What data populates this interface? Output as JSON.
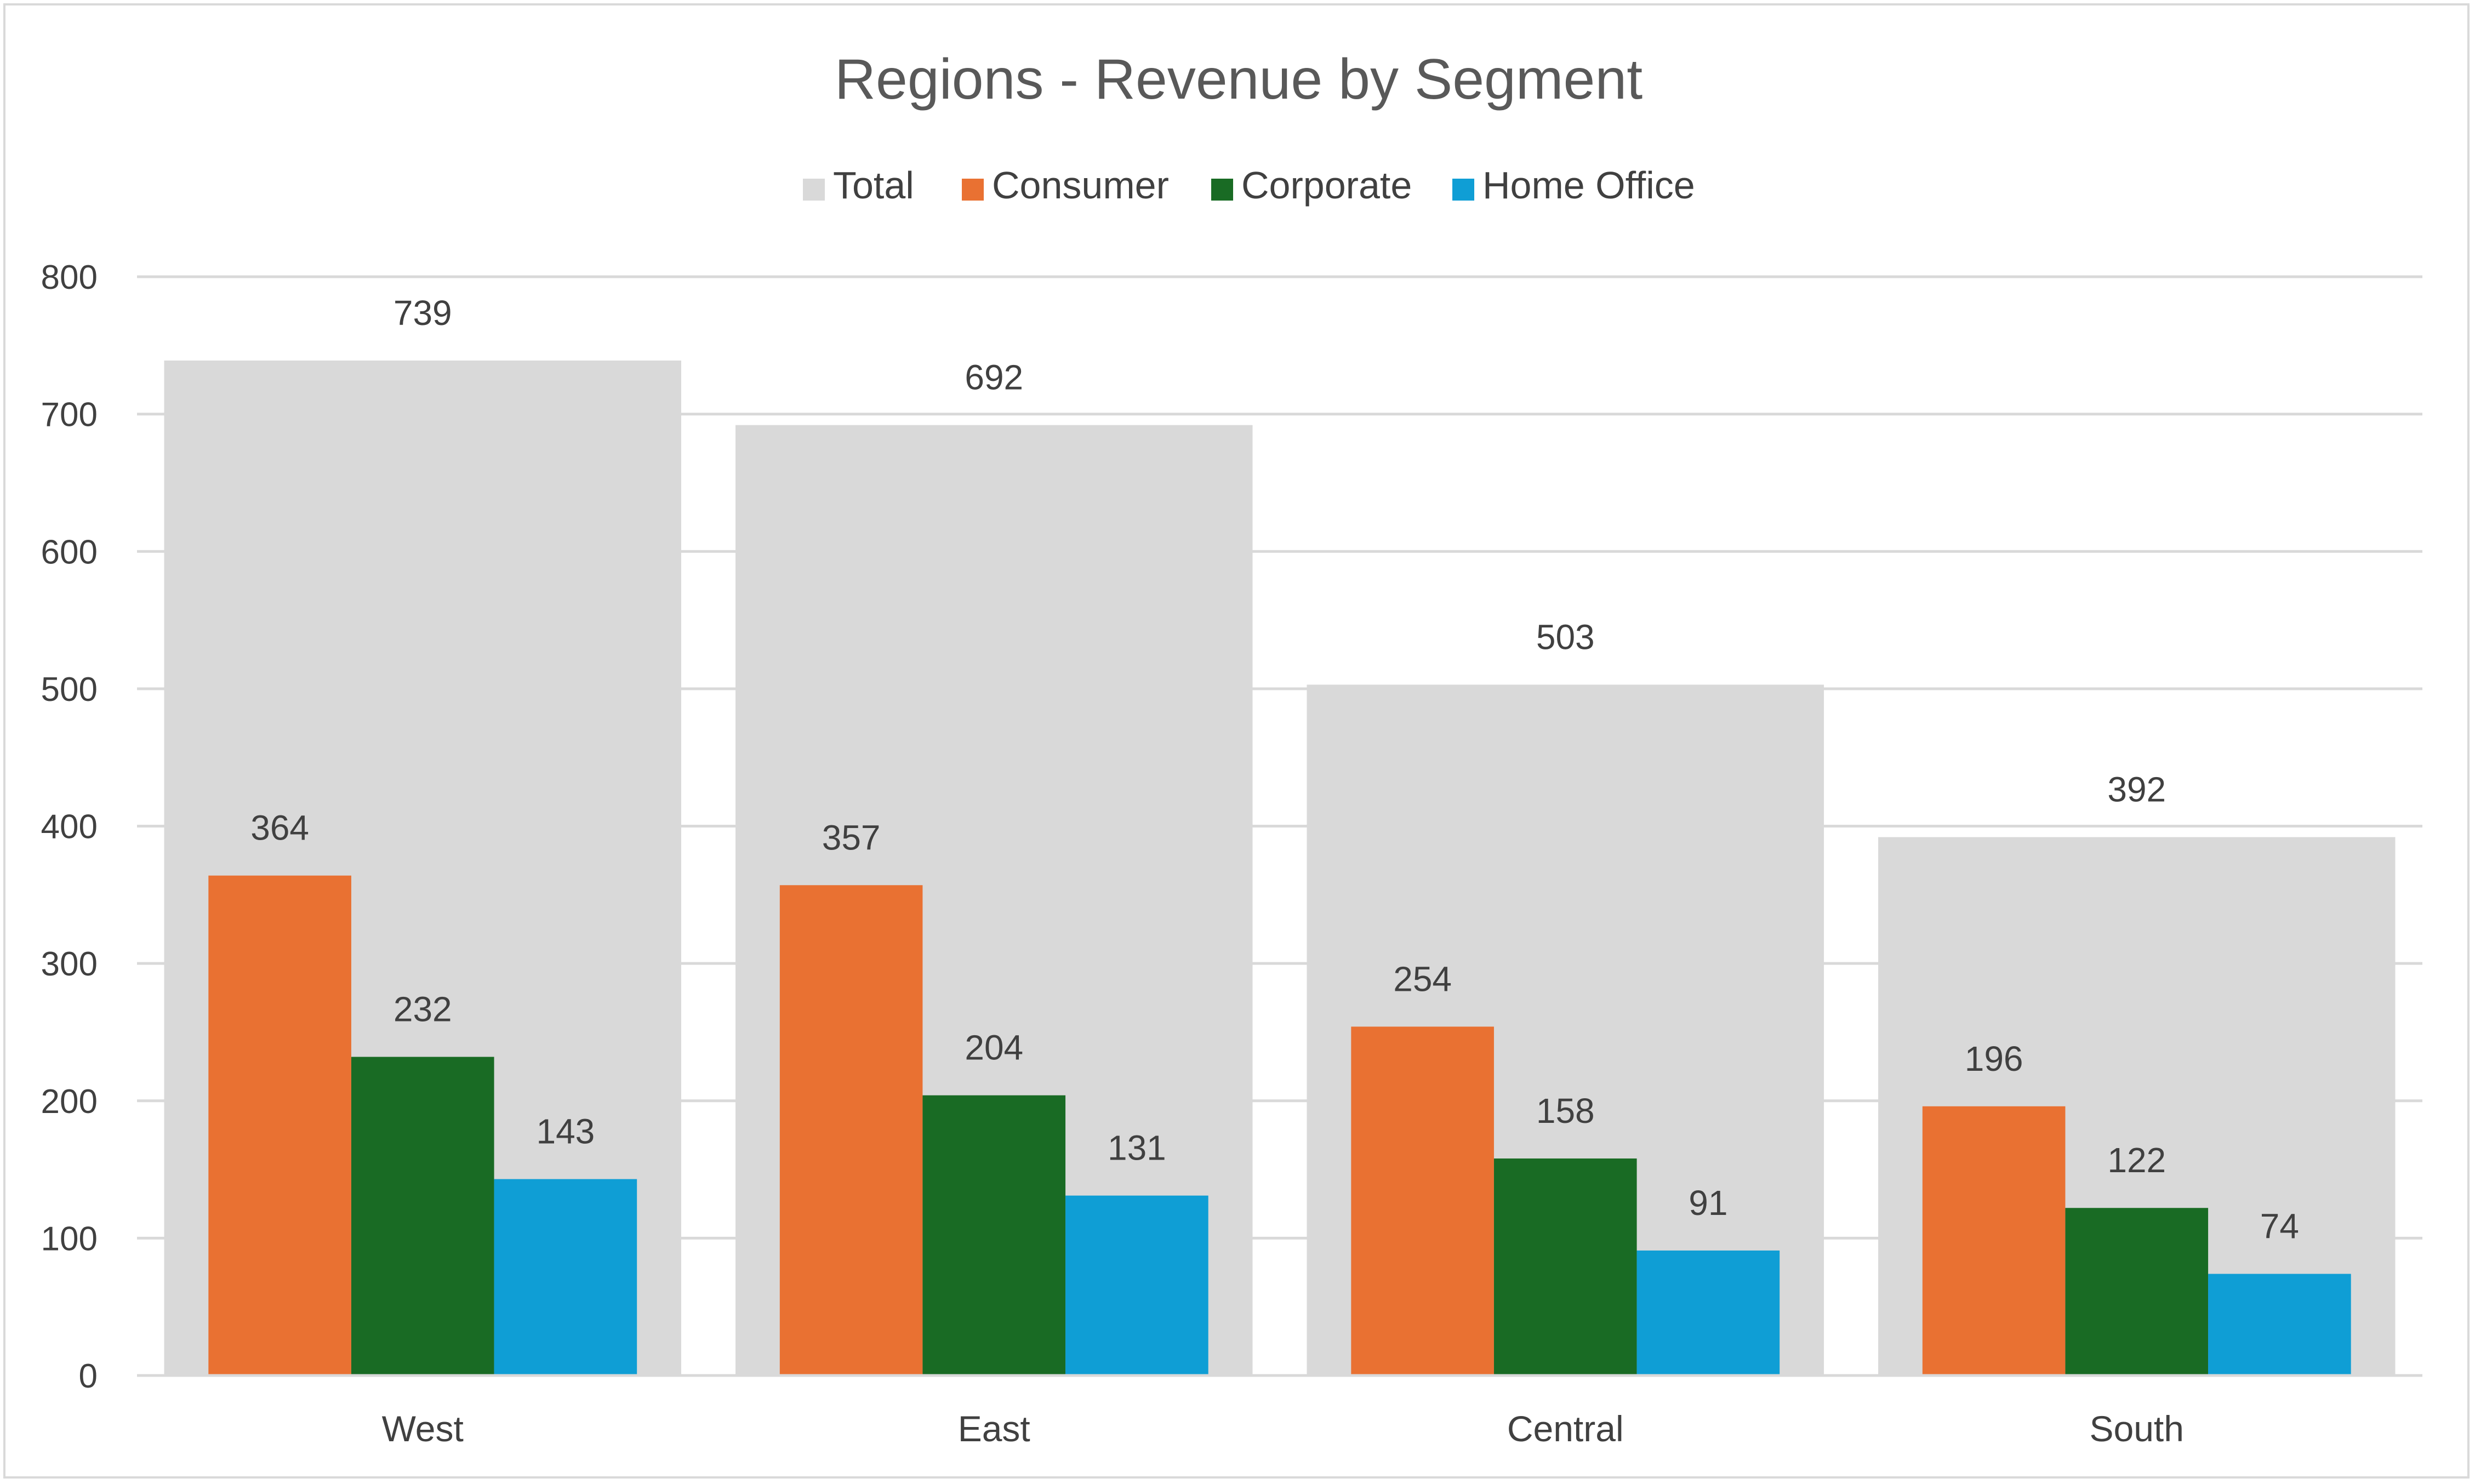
{
  "chart_data": {
    "type": "bar",
    "title": "Regions - Revenue by Segment",
    "categories": [
      "West",
      "East",
      "Central",
      "South"
    ],
    "series": [
      {
        "name": "Total",
        "color": "#d9d9d9",
        "values": [
          739,
          692,
          503,
          392
        ]
      },
      {
        "name": "Consumer",
        "color": "#e97132",
        "values": [
          364,
          357,
          254,
          196
        ]
      },
      {
        "name": "Corporate",
        "color": "#196b24",
        "values": [
          232,
          204,
          158,
          122
        ]
      },
      {
        "name": "Home Office",
        "color": "#0f9ed5",
        "values": [
          143,
          131,
          91,
          74
        ]
      }
    ],
    "ylim": [
      0,
      800
    ],
    "yticks": [
      0,
      100,
      200,
      300,
      400,
      500,
      600,
      700,
      800
    ],
    "xlabel": "",
    "ylabel": "",
    "legend_position": "top",
    "grid": true,
    "overlapping_total_bar": true
  }
}
